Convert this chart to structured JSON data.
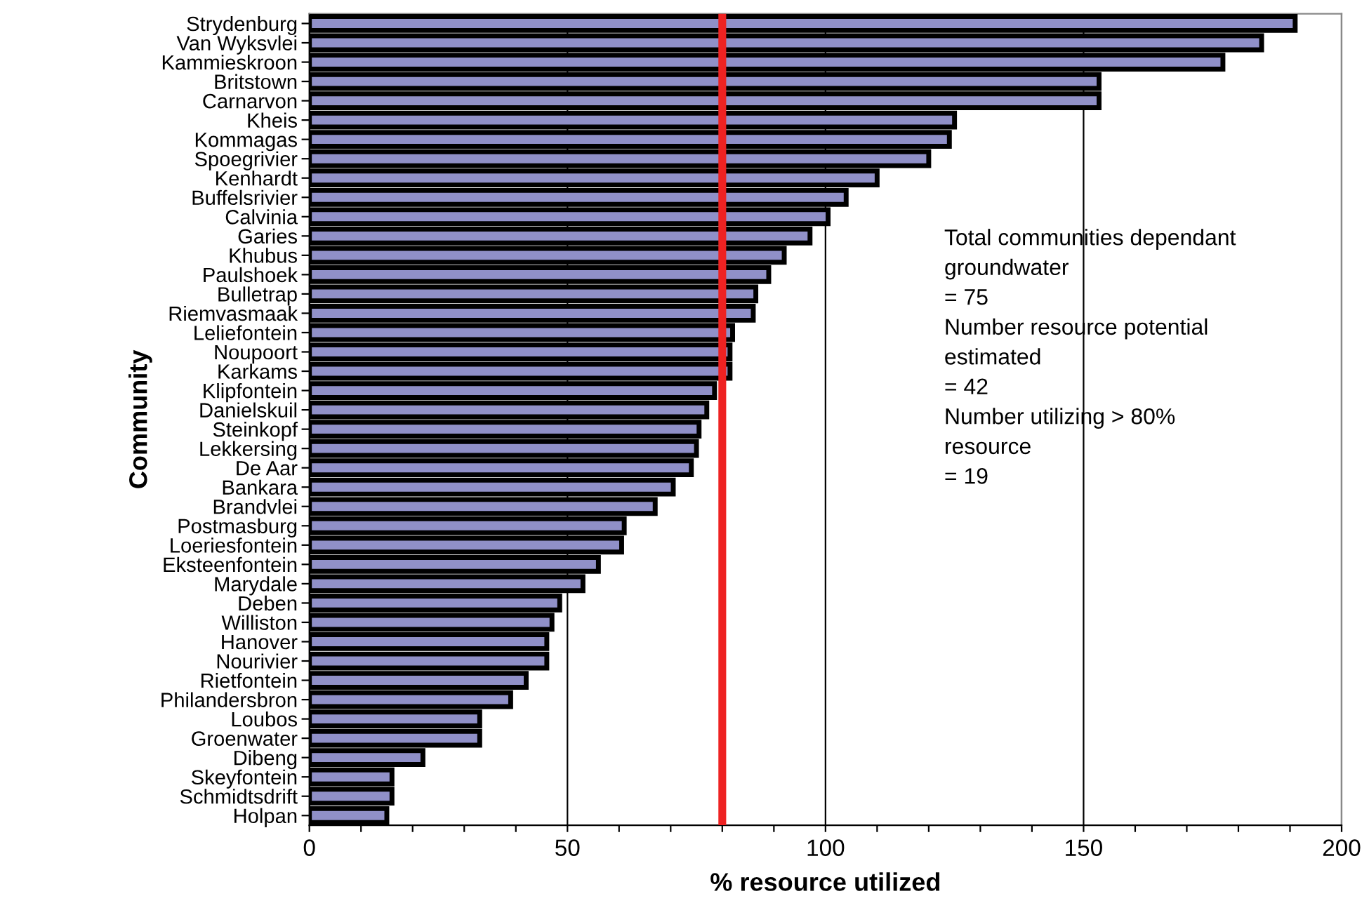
{
  "chart_data": {
    "type": "bar",
    "orientation": "horizontal",
    "xlabel": "% resource utilized",
    "ylabel": "Community",
    "categories": [
      "Strydenburg",
      "Van Wyksvlei",
      "Kammieskroon",
      "Britstown",
      "Carnarvon",
      "Kheis",
      "Kommagas",
      "Spoegrivier",
      "Kenhardt",
      "Buffelsrivier",
      "Calvinia",
      "Garies",
      "Khubus",
      "Paulshoek",
      "Bulletrap",
      "Riemvasmaak",
      "Leliefontein",
      "Noupoort",
      "Karkams",
      "Klipfontein",
      "Danielskuil",
      "Steinkopf",
      "Lekkersing",
      "De Aar",
      "Bankara",
      "Brandvlei",
      "Postmasburg",
      "Loeriesfontein",
      "Eksteenfontein",
      "Marydale",
      "Deben",
      "Williston",
      "Hanover",
      "Nourivier",
      "Rietfontein",
      "Philandersbron",
      "Loubos",
      "Groenwater",
      "Dibeng",
      "Skeyfontein",
      "Schmidtsdrift",
      "Holpan"
    ],
    "values": [
      191,
      184.5,
      177,
      153,
      153,
      125,
      124,
      120,
      110,
      104,
      100.5,
      97,
      92,
      89,
      86.5,
      86,
      82,
      81.5,
      81.5,
      78.5,
      77,
      75.5,
      75,
      74,
      70.5,
      67,
      61,
      60.5,
      56,
      53,
      48.5,
      47,
      46,
      46,
      42,
      39,
      33,
      33,
      22,
      16,
      16,
      15
    ],
    "color": "#9090c8",
    "xlim": [
      0,
      200
    ],
    "xticks": [
      0,
      {
        "value": 10,
        "label": null
      },
      {
        "value": 20,
        "label": null
      },
      {
        "value": 30,
        "label": null
      },
      {
        "value": 40,
        "label": null
      },
      50,
      {
        "value": 60,
        "label": null
      },
      {
        "value": 70,
        "label": null
      },
      {
        "value": 80,
        "label": null
      },
      {
        "value": 90,
        "label": null
      },
      100,
      {
        "value": 110,
        "label": null
      },
      {
        "value": 120,
        "label": null
      },
      {
        "value": 130,
        "label": null
      },
      {
        "value": 140,
        "label": null
      },
      150,
      {
        "value": 160,
        "label": null
      },
      {
        "value": 170,
        "label": null
      },
      {
        "value": 180,
        "label": null
      },
      {
        "value": 190,
        "label": null
      },
      200
    ],
    "grid": "x",
    "ref_lines": [
      {
        "axis": "x",
        "value": 80,
        "color": "#ee2222"
      }
    ],
    "annotations": [
      "Total communities dependant\ngroundwater\n= 75\nNumber resource potential\nestimated\n= 42\nNumber utilizing > 80%\nresource\n= 19"
    ]
  }
}
